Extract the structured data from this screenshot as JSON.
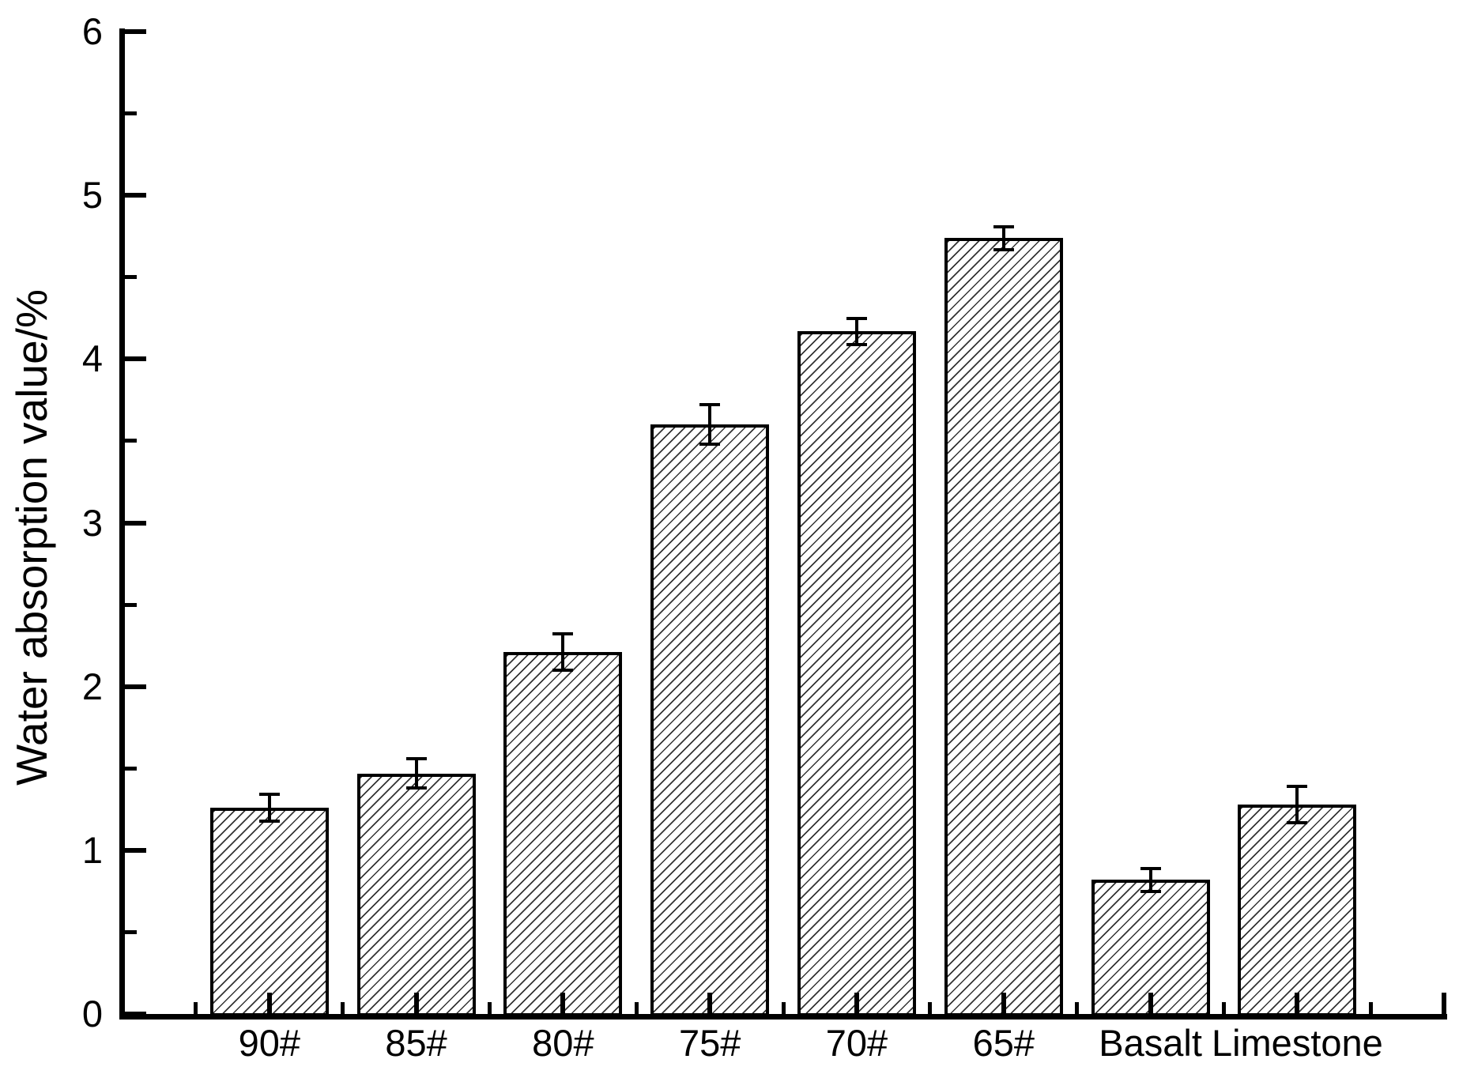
{
  "figure": {
    "background": "#ffffff",
    "axis_color": "#000000",
    "text_color": "#000000",
    "hatch_color": "#343434"
  },
  "chart_data": {
    "type": "bar",
    "title": "",
    "xlabel": "",
    "ylabel": "Water absorption value/%",
    "categories": [
      "90#",
      "85#",
      "80#",
      "75#",
      "70#",
      "65#",
      "Basalt",
      "Limestone"
    ],
    "values": [
      1.26,
      1.47,
      2.21,
      3.6,
      4.17,
      4.74,
      0.82,
      1.28
    ],
    "errors": [
      0.08,
      0.09,
      0.11,
      0.12,
      0.08,
      0.07,
      0.07,
      0.11
    ],
    "ylim": [
      0,
      6
    ],
    "y_major_ticks": [
      0,
      1,
      2,
      3,
      4,
      5,
      6
    ],
    "y_tick_labels": [
      "0",
      "1",
      "2",
      "3",
      "4",
      "5",
      "6"
    ],
    "y_minor_tick_step": 0.5,
    "grid": false,
    "legend": null,
    "bar_style": {
      "fill": "#ffffff",
      "hatch": "diagonal-forward-slash",
      "outline_color": "#000000"
    },
    "error_bars": true,
    "tick_direction": "in"
  }
}
